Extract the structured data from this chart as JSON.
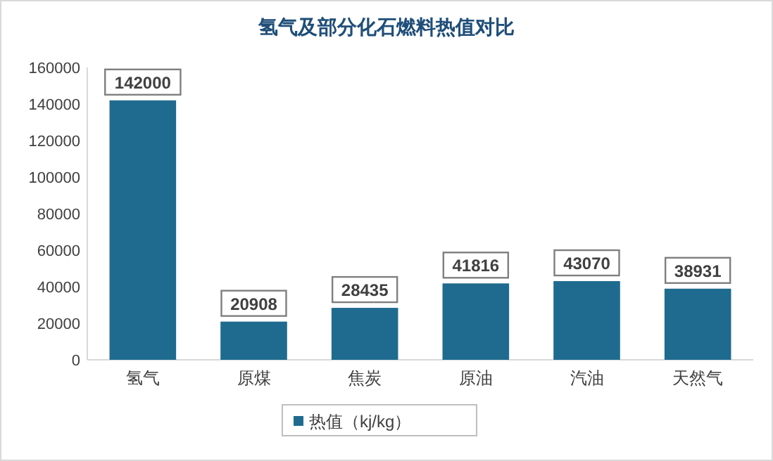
{
  "chart_data": {
    "type": "bar",
    "title": "氢气及部分化石燃料热值对比",
    "categories": [
      "氢气",
      "原煤",
      "焦炭",
      "原油",
      "汽油",
      "天然气"
    ],
    "series": [
      {
        "name": "热值（kj/kg）",
        "color": "#1f6b8f",
        "values": [
          142000,
          20908,
          28435,
          41816,
          43070,
          38931
        ]
      }
    ],
    "ylim": [
      0,
      160000
    ],
    "yticks": [
      0,
      20000,
      40000,
      60000,
      80000,
      100000,
      120000,
      140000,
      160000
    ],
    "data_labels": true,
    "legend": "bottom"
  }
}
